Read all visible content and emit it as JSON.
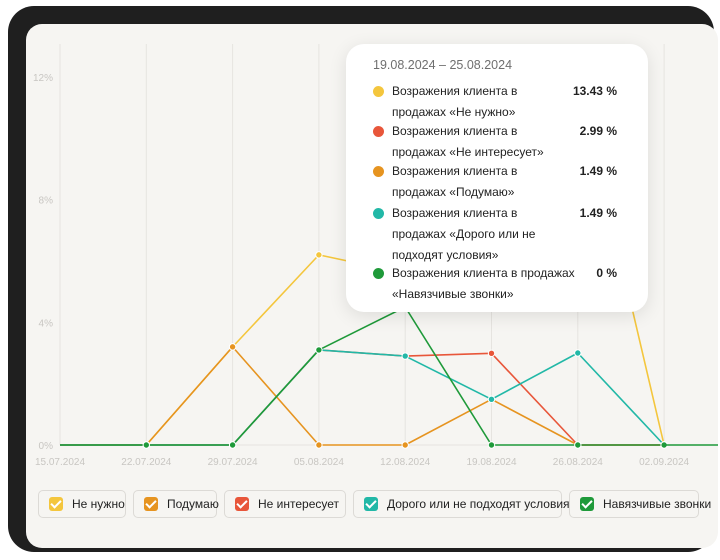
{
  "chart_data": {
    "type": "line",
    "x": [
      "15.07.2024",
      "22.07.2024",
      "29.07.2024",
      "05.08.2024",
      "12.08.2024",
      "19.08.2024",
      "26.08.2024",
      "02.09.2024"
    ],
    "y_ticks": [
      "12%",
      "8%",
      "4%",
      "0%"
    ],
    "ylim": [
      0,
      12
    ],
    "grid": "vertical",
    "series": [
      {
        "name": "Не нужно",
        "color": "#f4c63d",
        "values": [
          0,
          0,
          3.2,
          6.2,
          5.6,
          13.43,
          13.0,
          0
        ]
      },
      {
        "name": "Подумаю",
        "color": "#e69420",
        "values": [
          0,
          0,
          3.2,
          0,
          0,
          1.49,
          0,
          0
        ]
      },
      {
        "name": "Не интересует",
        "color": "#e8563a",
        "values": [
          0,
          0,
          0,
          3.1,
          2.9,
          2.99,
          0,
          0
        ]
      },
      {
        "name": "Дорого или не подходят условия",
        "color": "#22b8a7",
        "values": [
          0,
          0,
          0,
          3.1,
          2.9,
          1.49,
          3.0,
          0
        ]
      },
      {
        "name": "Навязчивые звонки",
        "color": "#1f9a3a",
        "values": [
          0,
          0,
          0,
          3.1,
          4.5,
          0,
          0,
          0
        ]
      }
    ]
  },
  "tooltip": {
    "range": "19.08.2024 – 25.08.2024",
    "rows": [
      {
        "label": "Возражения клиента в продажах «Не нужно»",
        "value": "13.43 %",
        "color": "#f4c63d"
      },
      {
        "label": "Возражения клиента в продажах «Не интересует»",
        "value": "2.99 %",
        "color": "#e8563a"
      },
      {
        "label": "Возражения клиента в продажах «Подумаю»",
        "value": "1.49 %",
        "color": "#e69420"
      },
      {
        "label": "Возражения клиента в продажах «Дорого или не подходят условия»",
        "value": "1.49 %",
        "color": "#22b8a7"
      },
      {
        "label": "Возражения клиента в продажах «Навязчивые звонки»",
        "value": "0 %",
        "color": "#1f9a3a"
      }
    ]
  },
  "legend": [
    {
      "label": "Не нужно",
      "color": "#f4c63d"
    },
    {
      "label": "Подумаю",
      "color": "#e69420"
    },
    {
      "label": "Не интересует",
      "color": "#e8563a"
    },
    {
      "label": "Дорого или не подходят условия",
      "color": "#22b8a7"
    },
    {
      "label": "Навязчивые звонки",
      "color": "#1f9a3a"
    }
  ]
}
